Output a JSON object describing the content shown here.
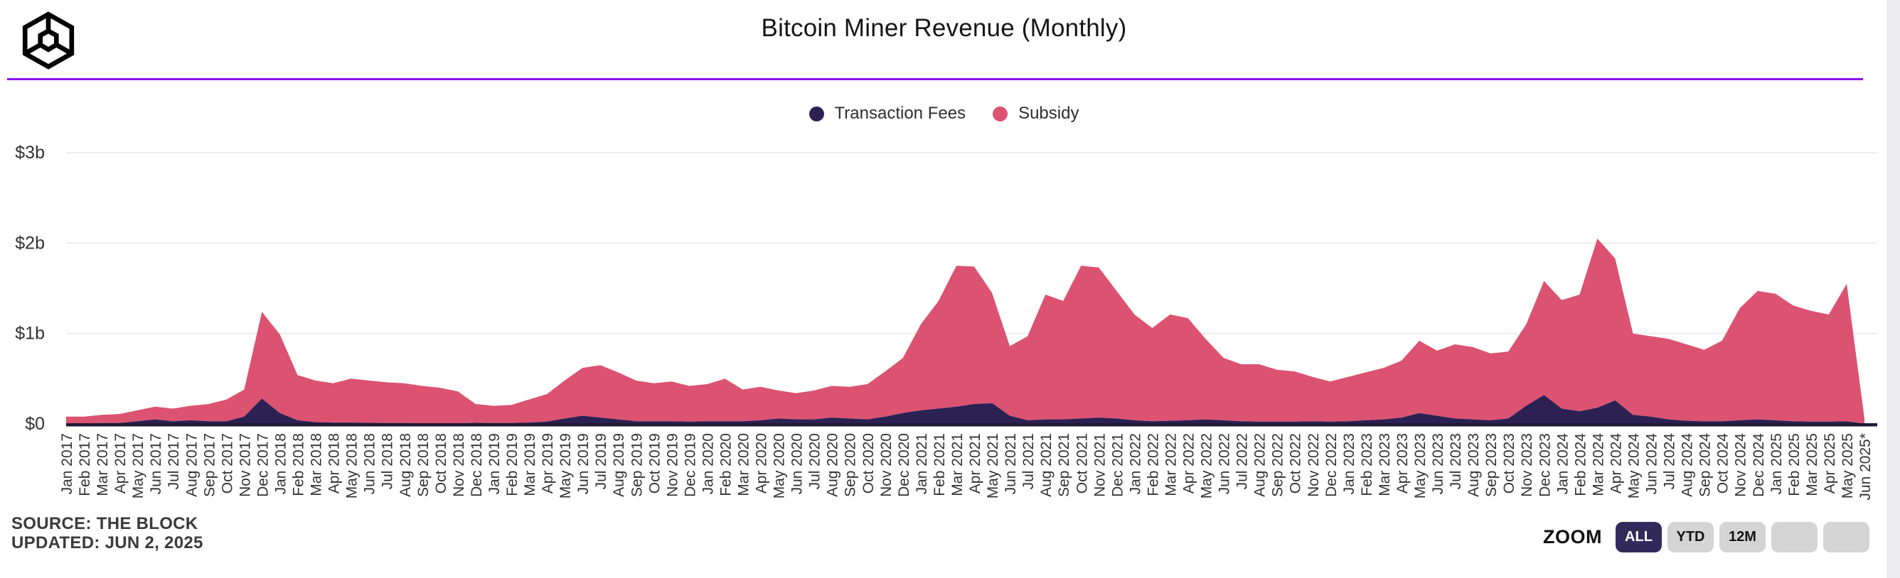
{
  "header": {
    "logo": "the-block-cube-logo"
  },
  "legend_note": "legend labels bound from chart_data.series names",
  "footer": {
    "source": "SOURCE: THE BLOCK",
    "updated": "UPDATED: JUN 2, 2025"
  },
  "zoom_controls": {
    "label": "ZOOM",
    "buttons": [
      {
        "label": "ALL",
        "active": true
      },
      {
        "label": "YTD",
        "active": false
      },
      {
        "label": "12M",
        "active": false
      },
      {
        "label": "",
        "active": false
      },
      {
        "label": "",
        "active": false
      }
    ]
  },
  "colors": {
    "fees_navy": "#2c2153",
    "subsidy_pink": "#dc5271",
    "accent_purple": "#8b12ec",
    "gridline": "#ececec",
    "axis_text": "#333333",
    "axis_line": "#1f1a36",
    "button_gray": "#d4d4d4",
    "button_active": "#332a5c"
  },
  "chart_data": {
    "type": "area",
    "stacked": true,
    "title": "Bitcoin Miner Revenue (Monthly)",
    "unit": "billions USD",
    "legend_position": "top",
    "grid": "horizontal",
    "ylim": [
      0,
      3
    ],
    "yticks": [
      {
        "label": "$0",
        "value": 0
      },
      {
        "label": "$1b",
        "value": 1
      },
      {
        "label": "$2b",
        "value": 2
      },
      {
        "label": "$3b",
        "value": 3
      }
    ],
    "categories": [
      "Jan 2017",
      "Feb 2017",
      "Mar 2017",
      "Apr 2017",
      "May 2017",
      "Jun 2017",
      "Jul 2017",
      "Aug 2017",
      "Sep 2017",
      "Oct 2017",
      "Nov 2017",
      "Dec 2017",
      "Jan 2018",
      "Feb 2018",
      "Mar 2018",
      "Apr 2018",
      "May 2018",
      "Jun 2018",
      "Jul 2018",
      "Aug 2018",
      "Sep 2018",
      "Oct 2018",
      "Nov 2018",
      "Dec 2018",
      "Jan 2019",
      "Feb 2019",
      "Mar 2019",
      "Apr 2019",
      "May 2019",
      "Jun 2019",
      "Jul 2019",
      "Aug 2019",
      "Sep 2019",
      "Oct 2019",
      "Nov 2019",
      "Dec 2019",
      "Jan 2020",
      "Feb 2020",
      "Mar 2020",
      "Apr 2020",
      "May 2020",
      "Jun 2020",
      "Jul 2020",
      "Aug 2020",
      "Sep 2020",
      "Oct 2020",
      "Nov 2020",
      "Dec 2020",
      "Jan 2021",
      "Feb 2021",
      "Mar 2021",
      "Apr 2021",
      "May 2021",
      "Jun 2021",
      "Jul 2021",
      "Aug 2021",
      "Sep 2021",
      "Oct 2021",
      "Nov 2021",
      "Dec 2021",
      "Jan 2022",
      "Feb 2022",
      "Mar 2022",
      "Apr 2022",
      "May 2022",
      "Jun 2022",
      "Jul 2022",
      "Aug 2022",
      "Sep 2022",
      "Oct 2022",
      "Nov 2022",
      "Dec 2022",
      "Jan 2023",
      "Feb 2023",
      "Mar 2023",
      "Apr 2023",
      "May 2023",
      "Jun 2023",
      "Jul 2023",
      "Aug 2023",
      "Sep 2023",
      "Oct 2023",
      "Nov 2023",
      "Dec 2023",
      "Jan 2024",
      "Feb 2024",
      "Mar 2024",
      "Apr 2024",
      "May 2024",
      "Jun 2024",
      "Jul 2024",
      "Aug 2024",
      "Sep 2024",
      "Oct 2024",
      "Nov 2024",
      "Dec 2024",
      "Jan 2025",
      "Feb 2025",
      "Mar 2025",
      "Apr 2025",
      "May 2025",
      "Jun 2025*"
    ],
    "series": [
      {
        "name": "Transaction Fees",
        "color": "#2c2153",
        "values": [
          0.005,
          0.006,
          0.01,
          0.01,
          0.03,
          0.05,
          0.03,
          0.04,
          0.03,
          0.03,
          0.08,
          0.28,
          0.12,
          0.04,
          0.02,
          0.015,
          0.015,
          0.012,
          0.01,
          0.01,
          0.008,
          0.007,
          0.008,
          0.012,
          0.01,
          0.01,
          0.015,
          0.025,
          0.06,
          0.09,
          0.07,
          0.05,
          0.03,
          0.03,
          0.03,
          0.025,
          0.03,
          0.03,
          0.03,
          0.04,
          0.06,
          0.05,
          0.05,
          0.07,
          0.06,
          0.05,
          0.08,
          0.12,
          0.15,
          0.17,
          0.19,
          0.22,
          0.23,
          0.09,
          0.04,
          0.05,
          0.05,
          0.06,
          0.07,
          0.06,
          0.04,
          0.03,
          0.035,
          0.04,
          0.05,
          0.04,
          0.03,
          0.025,
          0.025,
          0.025,
          0.03,
          0.025,
          0.03,
          0.04,
          0.05,
          0.07,
          0.12,
          0.09,
          0.06,
          0.05,
          0.04,
          0.06,
          0.2,
          0.32,
          0.17,
          0.14,
          0.18,
          0.26,
          0.1,
          0.08,
          0.05,
          0.035,
          0.03,
          0.03,
          0.04,
          0.05,
          0.04,
          0.03,
          0.025,
          0.025,
          0.03,
          0.003
        ]
      },
      {
        "name": "Subsidy",
        "color": "#dc5271",
        "values": [
          0.075,
          0.074,
          0.09,
          0.1,
          0.12,
          0.14,
          0.14,
          0.16,
          0.19,
          0.24,
          0.3,
          0.96,
          0.87,
          0.5,
          0.46,
          0.435,
          0.485,
          0.468,
          0.45,
          0.44,
          0.412,
          0.393,
          0.352,
          0.208,
          0.19,
          0.2,
          0.255,
          0.305,
          0.42,
          0.53,
          0.58,
          0.52,
          0.45,
          0.42,
          0.44,
          0.395,
          0.41,
          0.47,
          0.35,
          0.37,
          0.31,
          0.29,
          0.32,
          0.35,
          0.35,
          0.39,
          0.5,
          0.61,
          0.95,
          1.19,
          1.56,
          1.52,
          1.22,
          0.77,
          0.93,
          1.38,
          1.31,
          1.69,
          1.66,
          1.41,
          1.17,
          1.03,
          1.175,
          1.13,
          0.89,
          0.69,
          0.63,
          0.635,
          0.575,
          0.555,
          0.49,
          0.445,
          0.49,
          0.53,
          0.57,
          0.63,
          0.8,
          0.72,
          0.82,
          0.8,
          0.74,
          0.74,
          0.9,
          1.26,
          1.2,
          1.29,
          1.87,
          1.57,
          0.9,
          0.89,
          0.89,
          0.845,
          0.79,
          0.89,
          1.24,
          1.42,
          1.4,
          1.28,
          1.225,
          1.185,
          1.52,
          0.057
        ]
      }
    ]
  }
}
